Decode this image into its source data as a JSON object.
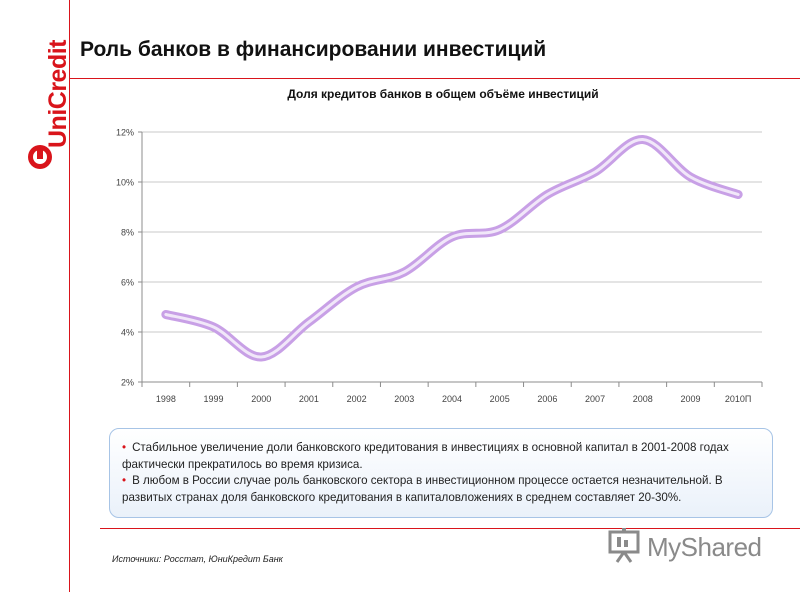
{
  "brand": {
    "name": "UniCredit",
    "accent": "#d9141b"
  },
  "page": {
    "title": "Роль банков в финансировании инвестиций",
    "source": "Источники: Росстат, ЮниКредит Банк"
  },
  "callout": {
    "items": [
      "Стабильное увеличение доли банковского кредитования в инвестициях в основной капитал в 2001-2008 годах фактически прекратилось во время кризиса.",
      "В любом в России случае роль банковского сектора в инвестиционном процессе остается незначительной. В развитых странах доля банковского кредитования в капиталовложениях в среднем составляет 20-30%."
    ]
  },
  "watermark": {
    "text": "MyShared"
  },
  "chart_data": {
    "type": "line",
    "title": "Доля кредитов банков в общем объёме инвестиций",
    "xlabel": "",
    "ylabel": "",
    "categories": [
      "1998",
      "1999",
      "2000",
      "2001",
      "2002",
      "2003",
      "2004",
      "2005",
      "2006",
      "2007",
      "2008",
      "2009",
      "2010П"
    ],
    "series": [
      {
        "values": [
          4.7,
          4.2,
          3.0,
          4.4,
          5.8,
          6.4,
          7.8,
          8.1,
          9.5,
          10.4,
          11.7,
          10.2,
          9.5
        ],
        "color": "#c8a0e6"
      }
    ],
    "ylim": [
      2,
      12
    ],
    "yticks": [
      2,
      4,
      6,
      8,
      10,
      12
    ],
    "ytick_labels": [
      "2%",
      "4%",
      "6%",
      "8%",
      "10%",
      "12%"
    ],
    "grid": true,
    "legend": "none"
  }
}
